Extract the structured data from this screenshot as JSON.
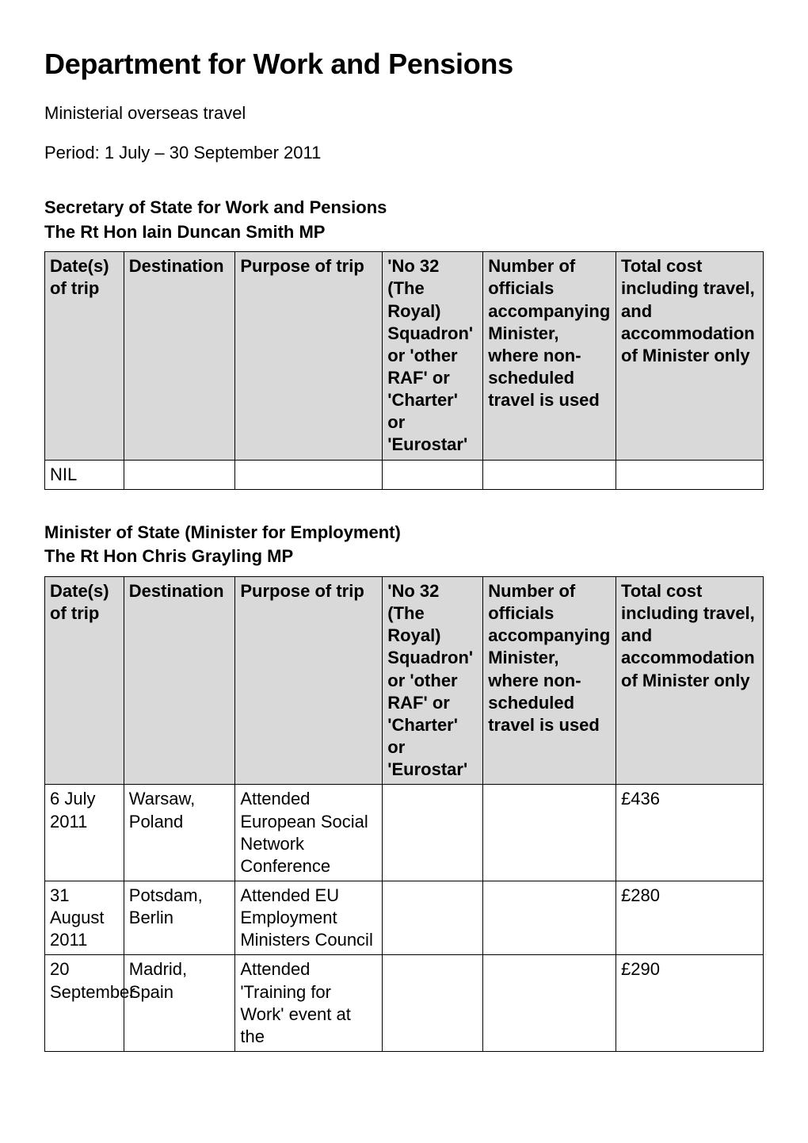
{
  "page": {
    "title": "Department for Work and Pensions",
    "subhead": "Ministerial overseas travel",
    "period": "Period: 1 July – 30 September 2011"
  },
  "sections": [
    {
      "title": "Secretary of State for Work and Pensions",
      "sub": "The Rt Hon Iain Duncan Smith MP",
      "headers": {
        "c1": "Date(s) of trip",
        "c2": "Destination",
        "c3": "Purpose of trip",
        "c4": "'No 32 (The Royal) Squadron' or 'other RAF' or 'Charter' or 'Eurostar'",
        "c5": "Number of officials accompanying Minister, where non-scheduled travel is used",
        "c6": "Total cost including travel, and accommodation of Minister only"
      },
      "rows": [
        {
          "c1": "NIL",
          "c2": "",
          "c3": "",
          "c4": "",
          "c5": "",
          "c6": ""
        }
      ]
    },
    {
      "title": "Minister of State (Minister for Employment)",
      "sub": "The Rt Hon Chris Grayling MP",
      "headers": {
        "c1": "Date(s) of trip",
        "c2": "Destination",
        "c3": "Purpose of trip",
        "c4": "'No 32 (The Royal) Squadron' or 'other RAF' or 'Charter' or 'Eurostar'",
        "c5": "Number of officials accompanying Minister, where non-scheduled travel is used",
        "c6": "Total cost including travel, and accommodation of Minister only"
      },
      "rows": [
        {
          "c1": "6 July 2011",
          "c2": "Warsaw, Poland",
          "c3": "Attended European Social Network Conference",
          "c4": "",
          "c5": "",
          "c6": "£436"
        },
        {
          "c1": "31 August 2011",
          "c2": "Potsdam, Berlin",
          "c3": "Attended EU Employment Ministers Council",
          "c4": "",
          "c5": "",
          "c6": "£280"
        },
        {
          "c1": "20 September",
          "c2": "Madrid, Spain",
          "c3": "Attended 'Training for Work' event at the",
          "c4": "",
          "c5": "",
          "c6": "£290"
        }
      ]
    }
  ],
  "style": {
    "header_bg": "#d9d9d9",
    "border_color": "#000000",
    "text_color": "#000000",
    "bg_color": "#ffffff"
  }
}
